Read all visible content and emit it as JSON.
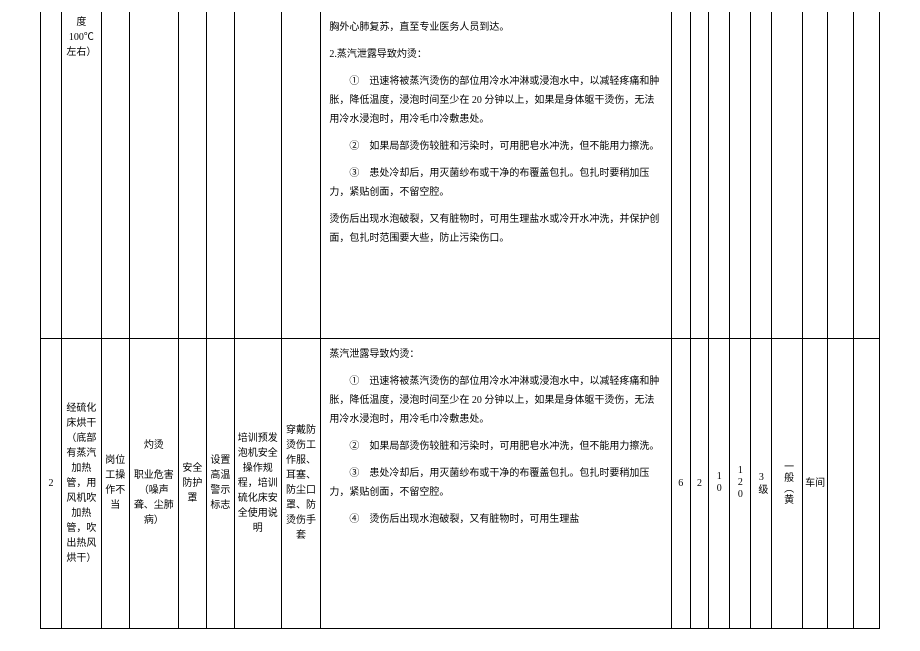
{
  "row1": {
    "col2_frag": "度100℃左右）",
    "body_lines": [
      "胸外心肺复苏，直至专业医务人员到达。",
      "2.蒸汽泄露导致灼烫：",
      "①　迅速将被蒸汽烫伤的部位用冷水冲淋或浸泡水中，以减轻疼痛和肿胀，降低温度，浸泡时间至少在 20 分钟以上，如果是身体躯干烫伤，无法用冷水浸泡时，用冷毛巾冷敷患处。",
      "②　如果局部烫伤较脏和污染时，可用肥皂水冲洗，但不能用力擦洗。",
      "③　患处冷却后，用灭菌纱布或干净的布覆盖包扎。包扎时要稍加压力，紧贴创面，不留空腔。",
      "烫伤后出现水泡破裂，又有脏物时，可用生理盐水或冷开水冲洗，并保护创面，包扎时范围要大些，防止污染伤口。"
    ]
  },
  "row2": {
    "idx": "2",
    "process": "经硫化床烘干（底部有蒸汽加热管，用风机吹加热管，吹出热风烘干）",
    "post": "岗位工操作不当",
    "harm": "灼烫\n\n职业危害（噪声聋、尘肺病）",
    "guard": "安全防护罩",
    "sign": "设置高温警示标志",
    "train": "培训预发泡机安全操作规程，培训硫化床安全使用说明",
    "ppe": "穿戴防烫伤工作服、耳塞、防尘口罩、防烫伤手套",
    "body_lines": [
      "蒸汽泄露导致灼烫：",
      "①　迅速将被蒸汽烫伤的部位用冷水冲淋或浸泡水中，以减轻疼痛和肿胀，降低温度，浸泡时间至少在 20 分钟以上，如果是身体躯干烫伤，无法用冷水浸泡时，用冷毛巾冷敷患处。",
      "②　如果局部烫伤较脏和污染时，可用肥皂水冲洗，但不能用力擦洗。",
      "③　患处冷却后，用灭菌纱布或干净的布覆盖包扎。包扎时要稍加压力，紧贴创面，不留空腔。",
      "④　烫伤后出现水泡破裂，又有脏物时，可用生理盐"
    ],
    "n1": "6",
    "n2": "2",
    "n3": "10",
    "n4": "120",
    "n5": "3级",
    "level": "一般（黄",
    "end1": "车间",
    "end2": "",
    "end3": ""
  }
}
